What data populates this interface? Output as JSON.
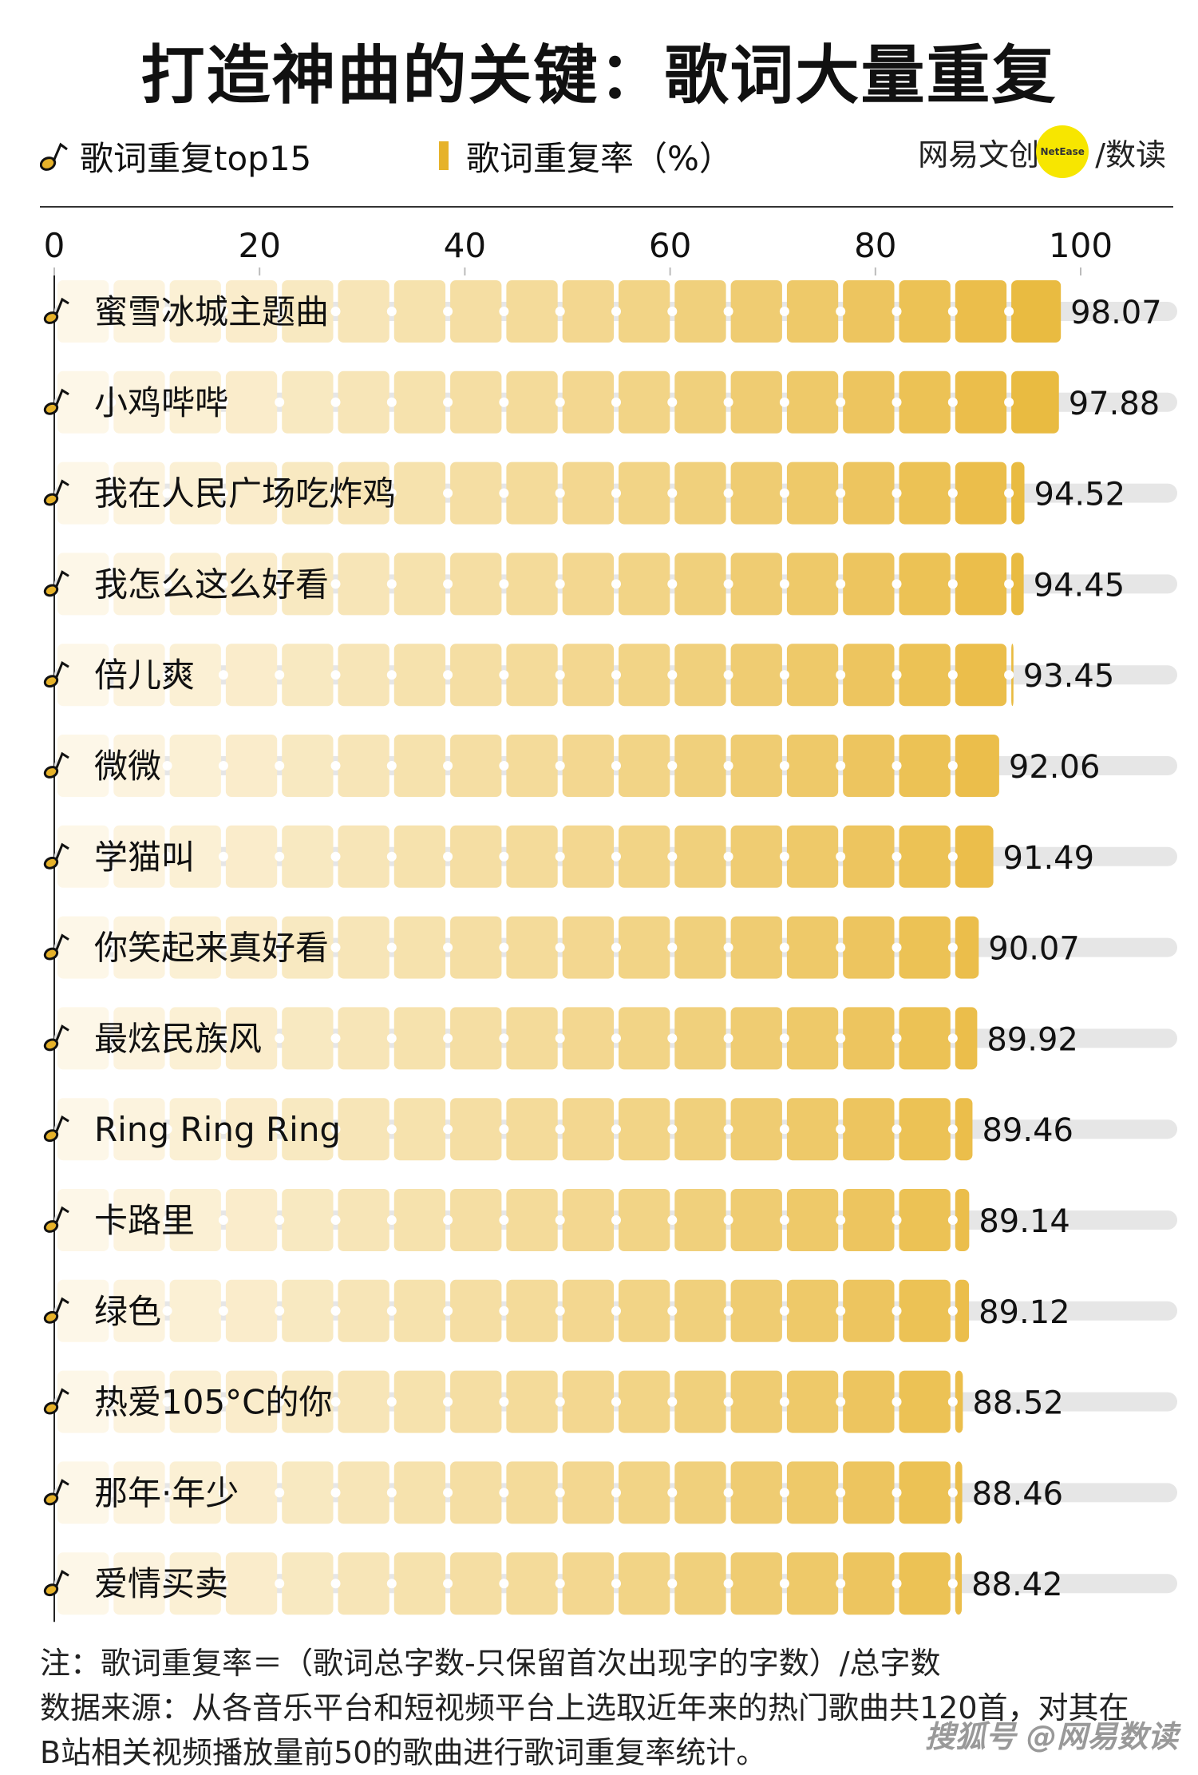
{
  "title": "打造神曲的关键：歌词大量重复",
  "legend": {
    "songs_label": "歌词重复top15",
    "rate_label": "歌词重复率（%）"
  },
  "brand": {
    "name": "网易文创",
    "circle_text": "NetEase",
    "suffix": "/数读"
  },
  "colors": {
    "accent": "#e6b22a",
    "track": "#e6e6e6",
    "light": "#fcf4e0"
  },
  "chart_data": {
    "type": "bar",
    "orientation": "horizontal",
    "categories": [
      "蜜雪冰城主题曲",
      "小鸡哔哔",
      "我在人民广场吃炸鸡",
      "我怎么这么好看",
      "倍儿爽",
      "微微",
      "学猫叫",
      "你笑起来真好看",
      "最炫民族风",
      "Ring Ring Ring",
      "卡路里",
      "绿色",
      "热爱105°C的你",
      "那年·年少",
      "爱情买卖"
    ],
    "values": [
      98.07,
      97.88,
      94.52,
      94.45,
      93.45,
      92.06,
      91.49,
      90.07,
      89.92,
      89.46,
      89.14,
      89.12,
      88.52,
      88.46,
      88.42
    ],
    "value_labels": [
      "98.07",
      "97.88",
      "94.52",
      "94.45",
      "93.45",
      "92.06",
      "91.49",
      "90.07",
      "89.92",
      "89.46",
      "89.14",
      "89.12",
      "88.52",
      "88.46",
      "88.42"
    ],
    "xticks": [
      "0",
      "20",
      "40",
      "60",
      "80",
      "100"
    ],
    "xlim": [
      0,
      100
    ],
    "unit": "%"
  },
  "footnote": {
    "line1": "注：歌词重复率＝（歌词总字数-只保留首次出现字的字数）/总字数",
    "line2": "数据来源：从各音乐平台和短视频平台上选取近年来的热门歌曲共120首，对其在",
    "line3": "B站相关视频播放量前50的歌曲进行歌词重复率统计。"
  },
  "watermark": "搜狐号 @网易数读"
}
